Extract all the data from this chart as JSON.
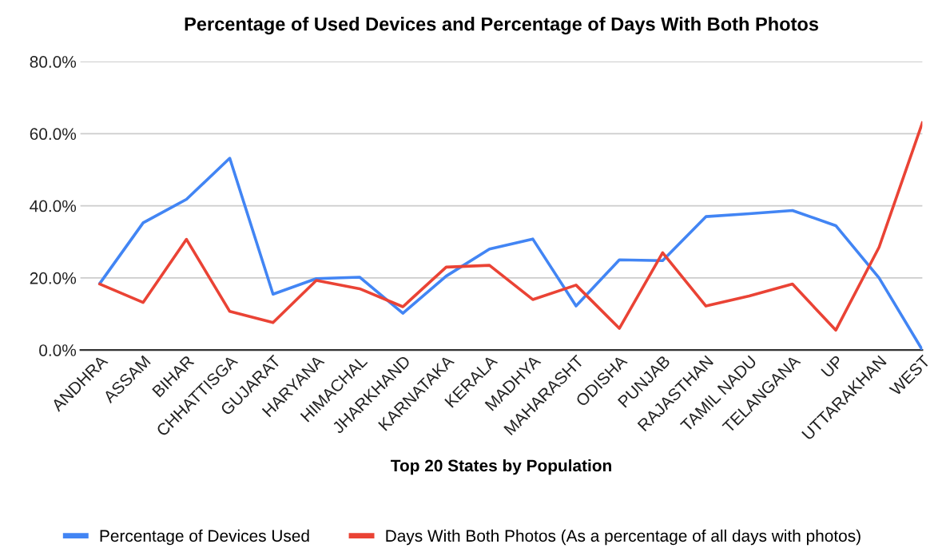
{
  "chart_data": {
    "type": "line",
    "title": "Percentage of Used Devices and Percentage of Days With Both Photos",
    "xlabel": "Top 20 States by Population",
    "categories": [
      "ANDHRA",
      "ASSAM",
      "BIHAR",
      "CHHATTISGA",
      "GUJARAT",
      "HARYANA",
      "HIMACHAL",
      "JHARKHAND",
      "KARNATAKA",
      "KERALA",
      "MADHYA",
      "MAHARASHT",
      "ODISHA",
      "PUNJAB",
      "RAJASTHAN",
      "TAMIL NADU",
      "TELANGANA",
      "UP",
      "UTTARAKHAN",
      "WEST"
    ],
    "series": [
      {
        "name": "Percentage of Devices Used",
        "color": "#4285f4",
        "values": [
          18.5,
          35.3,
          41.8,
          53.2,
          15.5,
          19.8,
          20.2,
          10.2,
          20.5,
          28,
          30.8,
          12.2,
          25,
          24.8,
          37,
          37.8,
          38.7,
          34.5,
          20,
          0
        ]
      },
      {
        "name": "Days With Both Photos (As a percentage of all days with photos)",
        "color": "#ea4335",
        "values": [
          18.3,
          13.2,
          30.7,
          10.7,
          7.6,
          19.3,
          17,
          12,
          23,
          23.5,
          14,
          18,
          6,
          27,
          12.2,
          15,
          18.3,
          5.5,
          28.5,
          63
        ]
      }
    ],
    "ylim": [
      0,
      80
    ],
    "yticks": [
      {
        "value": 0,
        "label": "0.0%"
      },
      {
        "value": 20,
        "label": "20.0%"
      },
      {
        "value": 40,
        "label": "40.0%"
      },
      {
        "value": 60,
        "label": "60.0%"
      },
      {
        "value": 80,
        "label": "80.0%"
      }
    ],
    "grid": "y",
    "legend": "bottom",
    "marker": "none",
    "line_style": "solid"
  }
}
